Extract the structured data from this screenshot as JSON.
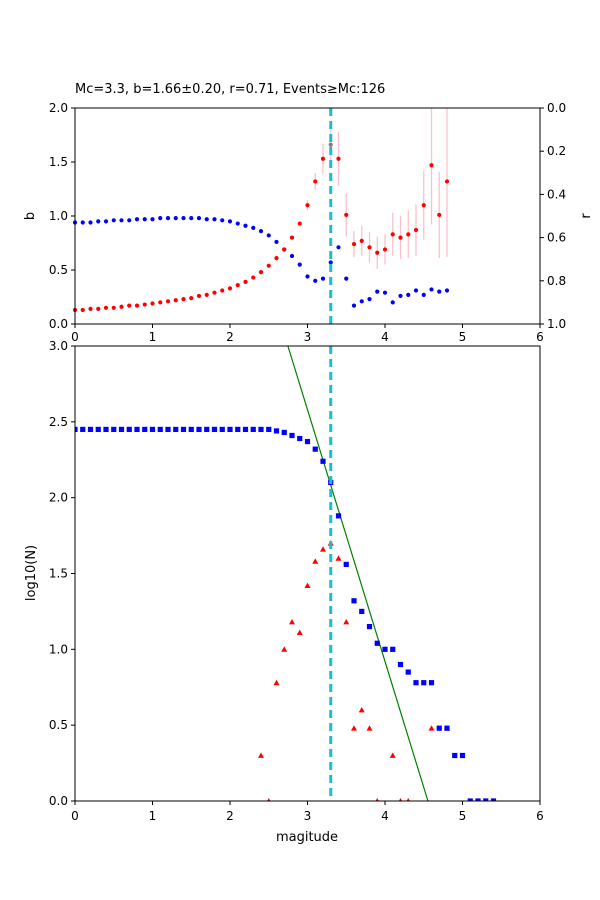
{
  "chart_data": [
    {
      "type": "scatter",
      "title": "Mc=3.3, b=1.66±0.20, r=0.71, Events≥Mc:126",
      "xlabel": "",
      "ylabel": "b",
      "ylabel_right": "r",
      "xlim": [
        0,
        6
      ],
      "ylim": [
        0,
        2
      ],
      "ylim_right": [
        1,
        0
      ],
      "xticks": [
        "0",
        "1",
        "2",
        "3",
        "4",
        "5",
        "6"
      ],
      "yticks": [
        "0.0",
        "0.5",
        "1.0",
        "1.5",
        "2.0"
      ],
      "yticks_right": [
        "0.0",
        "0.2",
        "0.4",
        "0.6",
        "0.8",
        "1.0"
      ],
      "mc_line_x": 3.3,
      "colors": {
        "b": "#ff0000",
        "r": "#0000ff",
        "errorbar": "#ffc0cb",
        "mc_line": "#17becf",
        "highlight": "#808080"
      },
      "series": [
        {
          "axis": "left",
          "x": [
            0.0,
            0.1,
            0.2,
            0.3,
            0.4,
            0.5,
            0.6,
            0.7,
            0.8,
            0.9,
            1.0,
            1.1,
            1.2,
            1.3,
            1.4,
            1.5,
            1.6,
            1.7,
            1.8,
            1.9,
            2.0,
            2.1,
            2.2,
            2.3,
            2.4,
            2.5,
            2.6,
            2.7,
            2.8,
            2.9,
            3.0,
            3.1,
            3.2,
            3.3,
            3.4,
            3.5,
            3.6,
            3.7,
            3.8,
            3.9,
            4.0,
            4.1,
            4.2,
            4.3,
            4.4,
            4.5,
            4.6,
            4.7,
            4.8
          ],
          "y": [
            0.13,
            0.13,
            0.14,
            0.14,
            0.15,
            0.15,
            0.16,
            0.17,
            0.17,
            0.18,
            0.19,
            0.2,
            0.21,
            0.22,
            0.23,
            0.24,
            0.26,
            0.27,
            0.29,
            0.31,
            0.33,
            0.36,
            0.39,
            0.43,
            0.48,
            0.54,
            0.61,
            0.69,
            0.8,
            0.93,
            1.1,
            1.32,
            1.53,
            1.66,
            1.53,
            1.01,
            0.74,
            0.77,
            0.71,
            0.66,
            0.69,
            0.83,
            0.8,
            0.83,
            0.87,
            1.1,
            1.47,
            1.01,
            1.32
          ],
          "err": [
            0,
            0,
            0,
            0,
            0,
            0,
            0,
            0,
            0,
            0,
            0,
            0,
            0,
            0,
            0,
            0,
            0,
            0,
            0,
            0,
            0,
            0,
            0,
            0,
            0,
            0,
            0,
            0,
            0.01,
            0.02,
            0.05,
            0.08,
            0.14,
            0.2,
            0.25,
            0.2,
            0.12,
            0.14,
            0.14,
            0.15,
            0.14,
            0.2,
            0.2,
            0.22,
            0.24,
            0.32,
            0.55,
            0.4,
            0.7
          ]
        },
        {
          "axis": "right",
          "x": [
            0.0,
            0.1,
            0.2,
            0.3,
            0.4,
            0.5,
            0.6,
            0.7,
            0.8,
            0.9,
            1.0,
            1.1,
            1.2,
            1.3,
            1.4,
            1.5,
            1.6,
            1.7,
            1.8,
            1.9,
            2.0,
            2.1,
            2.2,
            2.3,
            2.4,
            2.5,
            2.6,
            2.7,
            2.8,
            2.9,
            3.0,
            3.1,
            3.2,
            3.3,
            3.4,
            3.5,
            3.6,
            3.7,
            3.8,
            3.9,
            4.0,
            4.1,
            4.2,
            4.3,
            4.4,
            4.5,
            4.6,
            4.7,
            4.8
          ],
          "y": [
            0.53,
            0.53,
            0.53,
            0.525,
            0.525,
            0.52,
            0.52,
            0.52,
            0.515,
            0.515,
            0.515,
            0.51,
            0.51,
            0.51,
            0.51,
            0.51,
            0.51,
            0.515,
            0.515,
            0.52,
            0.525,
            0.535,
            0.545,
            0.555,
            0.57,
            0.59,
            0.62,
            0.655,
            0.685,
            0.725,
            0.78,
            0.8,
            0.79,
            0.715,
            0.645,
            0.79,
            0.915,
            0.895,
            0.885,
            0.85,
            0.855,
            0.9,
            0.87,
            0.865,
            0.845,
            0.865,
            0.84,
            0.85,
            0.845
          ]
        }
      ]
    },
    {
      "type": "scatter",
      "title": "",
      "xlabel": "magitude",
      "ylabel": "log10(N)",
      "xlim": [
        0,
        6
      ],
      "ylim": [
        0,
        3
      ],
      "xticks": [
        "0",
        "1",
        "2",
        "3",
        "4",
        "5",
        "6"
      ],
      "yticks": [
        "0.0",
        "0.5",
        "1.0",
        "1.5",
        "2.0",
        "2.5",
        "3.0"
      ],
      "mc_line_x": 3.3,
      "fit_line": {
        "a": 7.56,
        "b": 1.66,
        "color": "#008000"
      },
      "colors": {
        "cumulative": "#0000ff",
        "incremental": "#ff0000",
        "mc_line": "#17becf"
      },
      "series": [
        {
          "marker": "square",
          "x": [
            0.0,
            0.1,
            0.2,
            0.3,
            0.4,
            0.5,
            0.6,
            0.7,
            0.8,
            0.9,
            1.0,
            1.1,
            1.2,
            1.3,
            1.4,
            1.5,
            1.6,
            1.7,
            1.8,
            1.9,
            2.0,
            2.1,
            2.2,
            2.3,
            2.4,
            2.5,
            2.6,
            2.7,
            2.8,
            2.9,
            3.0,
            3.1,
            3.2,
            3.3,
            3.4,
            3.5,
            3.6,
            3.7,
            3.8,
            3.9,
            4.0,
            4.1,
            4.2,
            4.3,
            4.4,
            4.5,
            4.6,
            4.7,
            4.8,
            4.9,
            5.0,
            5.1,
            5.2,
            5.3,
            5.4
          ],
          "y": [
            2.45,
            2.45,
            2.45,
            2.45,
            2.45,
            2.45,
            2.45,
            2.45,
            2.45,
            2.45,
            2.45,
            2.45,
            2.45,
            2.45,
            2.45,
            2.45,
            2.45,
            2.45,
            2.45,
            2.45,
            2.45,
            2.45,
            2.45,
            2.45,
            2.45,
            2.45,
            2.44,
            2.43,
            2.41,
            2.39,
            2.37,
            2.32,
            2.24,
            2.1,
            1.88,
            1.56,
            1.32,
            1.25,
            1.15,
            1.04,
            1.0,
            1.0,
            0.9,
            0.85,
            0.78,
            0.78,
            0.78,
            0.48,
            0.48,
            0.3,
            0.3,
            0.0,
            0.0,
            0.0,
            0.0
          ]
        },
        {
          "marker": "triangle",
          "x": [
            2.4,
            2.5,
            2.6,
            2.7,
            2.8,
            2.9,
            3.0,
            3.1,
            3.2,
            3.3,
            3.4,
            3.5,
            3.6,
            3.7,
            3.8,
            3.9,
            4.1,
            4.2,
            4.3,
            4.6,
            4.8
          ],
          "y": [
            0.3,
            0.0,
            0.78,
            1.0,
            1.18,
            1.11,
            1.42,
            1.58,
            1.66,
            1.7,
            1.6,
            1.18,
            0.48,
            0.6,
            0.48,
            0.0,
            0.3,
            0.0,
            0.0,
            0.48,
            0.48
          ]
        }
      ]
    }
  ]
}
